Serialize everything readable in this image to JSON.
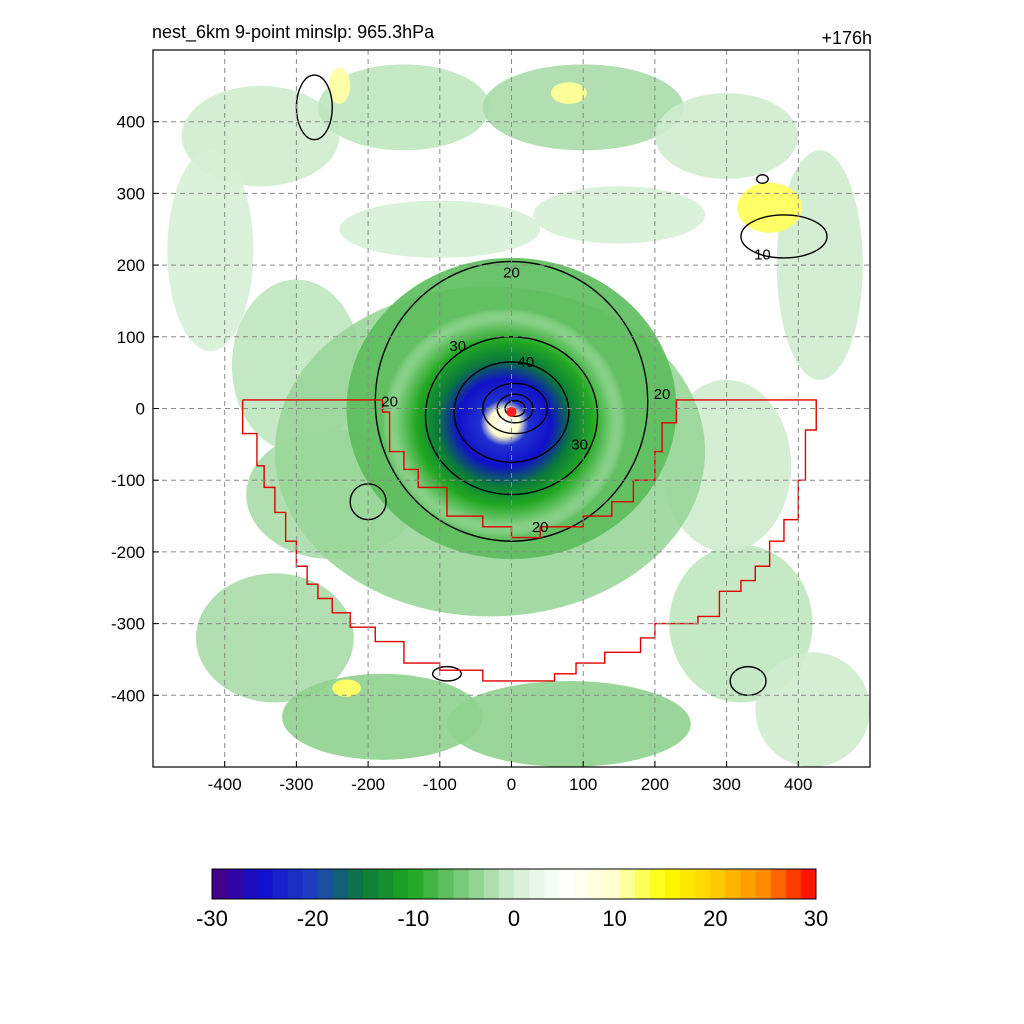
{
  "header": {
    "title_left": "nest_6km  9-point minslp: 965.3hPa",
    "title_right": "+176h"
  },
  "chart_data": {
    "type": "heatmap",
    "title": "nest_6km  9-point minslp: 965.3hPa",
    "forecast_hour_label": "+176h",
    "x_range": [
      -500,
      500
    ],
    "y_range": [
      -500,
      500
    ],
    "x_ticks": [
      -400,
      -300,
      -200,
      -100,
      0,
      100,
      200,
      300,
      400
    ],
    "y_ticks": [
      400,
      300,
      200,
      100,
      0,
      -100,
      -200,
      -300,
      -400
    ],
    "grid": true,
    "grid_style": "dashed gray",
    "colorbar": {
      "range": [
        -30,
        30
      ],
      "tick_labels": [
        "-30",
        "-20",
        "-10",
        "0",
        "10",
        "20",
        "30"
      ],
      "tick_values": [
        -30,
        -20,
        -10,
        0,
        10,
        20,
        30
      ],
      "colors_negative_to_positive": [
        "#4b0082",
        "#1010d0",
        "#1e40c0",
        "#0a7a3a",
        "#22a822",
        "#7ccc7c",
        "#d6efd6",
        "#ffffff",
        "#ffffcc",
        "#ffff00",
        "#ffcc00",
        "#ff8800",
        "#ff0000"
      ]
    },
    "contour_labels": [
      {
        "text": "20",
        "x": 0,
        "y": 190
      },
      {
        "text": "30",
        "x": -75,
        "y": 87
      },
      {
        "text": "40",
        "x": 20,
        "y": 65
      },
      {
        "text": "20",
        "x": -170,
        "y": 10
      },
      {
        "text": "20",
        "x": 210,
        "y": 20
      },
      {
        "text": "30",
        "x": 95,
        "y": -50
      },
      {
        "text": "20",
        "x": 40,
        "y": -165
      },
      {
        "text": "10",
        "x": 350,
        "y": 215
      }
    ],
    "storm_center": {
      "x": 0,
      "y": -5
    },
    "red_polygon": [
      [
        -375,
        12
      ],
      [
        -180,
        12
      ],
      [
        -180,
        -5
      ],
      [
        -170,
        -5
      ],
      [
        -170,
        -60
      ],
      [
        -150,
        -60
      ],
      [
        -150,
        -85
      ],
      [
        -130,
        -85
      ],
      [
        -130,
        -110
      ],
      [
        -90,
        -110
      ],
      [
        -90,
        -150
      ],
      [
        -40,
        -150
      ],
      [
        -40,
        -165
      ],
      [
        0,
        -165
      ],
      [
        0,
        -180
      ],
      [
        40,
        -180
      ],
      [
        40,
        -165
      ],
      [
        100,
        -165
      ],
      [
        100,
        -150
      ],
      [
        140,
        -150
      ],
      [
        140,
        -130
      ],
      [
        170,
        -130
      ],
      [
        170,
        -100
      ],
      [
        200,
        -100
      ],
      [
        200,
        -60
      ],
      [
        210,
        -60
      ],
      [
        210,
        -20
      ],
      [
        230,
        -20
      ],
      [
        230,
        12
      ],
      [
        425,
        12
      ],
      [
        425,
        -30
      ],
      [
        410,
        -30
      ],
      [
        410,
        -100
      ],
      [
        400,
        -100
      ],
      [
        400,
        -155
      ],
      [
        380,
        -155
      ],
      [
        380,
        -185
      ],
      [
        360,
        -185
      ],
      [
        360,
        -220
      ],
      [
        340,
        -220
      ],
      [
        340,
        -240
      ],
      [
        320,
        -240
      ],
      [
        320,
        -255
      ],
      [
        290,
        -255
      ],
      [
        290,
        -290
      ],
      [
        260,
        -290
      ],
      [
        260,
        -300
      ],
      [
        200,
        -300
      ],
      [
        200,
        -320
      ],
      [
        180,
        -320
      ],
      [
        180,
        -340
      ],
      [
        130,
        -340
      ],
      [
        130,
        -355
      ],
      [
        90,
        -355
      ],
      [
        90,
        -370
      ],
      [
        60,
        -370
      ],
      [
        60,
        -380
      ],
      [
        -40,
        -380
      ],
      [
        -40,
        -365
      ],
      [
        -100,
        -365
      ],
      [
        -100,
        -355
      ],
      [
        -150,
        -355
      ],
      [
        -150,
        -325
      ],
      [
        -190,
        -325
      ],
      [
        -190,
        -305
      ],
      [
        -225,
        -305
      ],
      [
        -225,
        -285
      ],
      [
        -250,
        -285
      ],
      [
        -250,
        -265
      ],
      [
        -270,
        -265
      ],
      [
        -270,
        -245
      ],
      [
        -285,
        -245
      ],
      [
        -285,
        -220
      ],
      [
        -300,
        -220
      ],
      [
        -300,
        -185
      ],
      [
        -315,
        -185
      ],
      [
        -315,
        -145
      ],
      [
        -330,
        -145
      ],
      [
        -330,
        -110
      ],
      [
        -345,
        -110
      ],
      [
        -345,
        -80
      ],
      [
        -355,
        -80
      ],
      [
        -355,
        -35
      ],
      [
        -375,
        -35
      ],
      [
        -375,
        12
      ]
    ]
  }
}
